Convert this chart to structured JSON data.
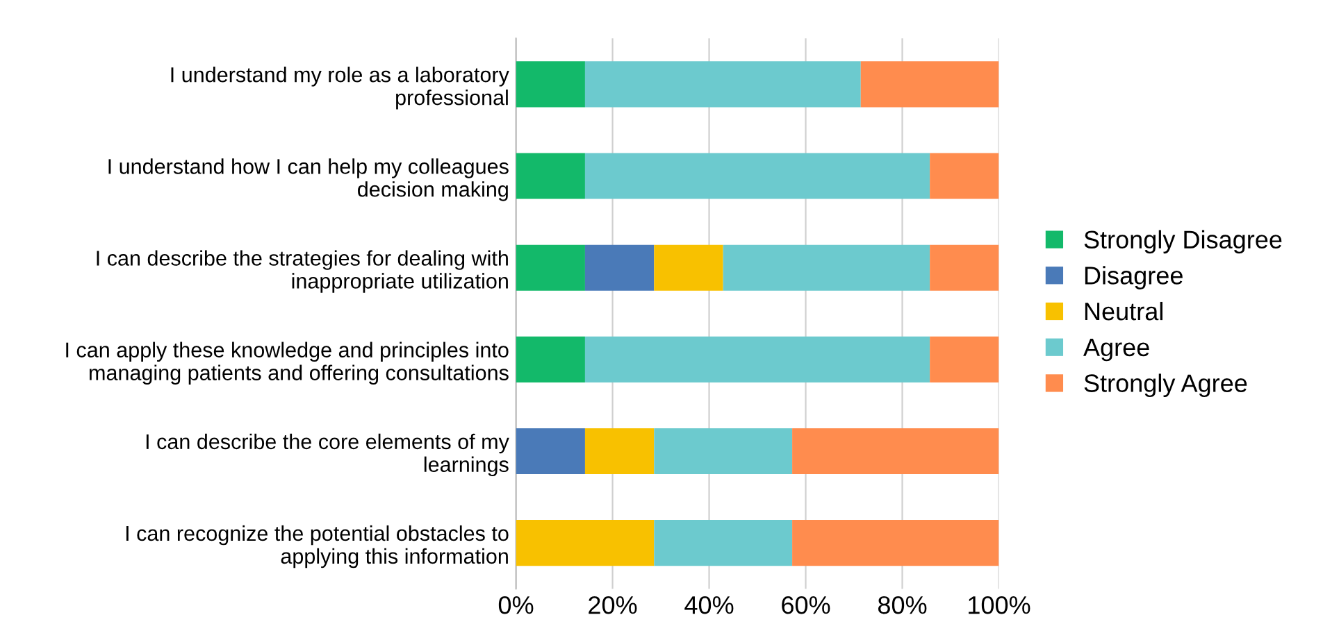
{
  "chart_data": {
    "type": "bar",
    "orientation": "horizontal",
    "stacked": true,
    "categories": [
      "I understand my role as a laboratory\nprofessional",
      "I understand how I can help my colleagues\ndecision making",
      "I can describe the strategies for dealing with\ninappropriate utilization",
      "I can apply these knowledge and principles into\nmanaging patients and offering consultations",
      "I can describe the core elements of my\nlearnings",
      "I can recognize the potential obstacles to\napplying this information"
    ],
    "series": [
      {
        "name": "Strongly Disagree",
        "color": "#13b96a",
        "values": [
          14.3,
          14.3,
          14.3,
          14.3,
          0,
          0
        ]
      },
      {
        "name": "Disagree",
        "color": "#4a7ab8",
        "values": [
          0,
          0,
          14.3,
          0,
          14.3,
          0
        ]
      },
      {
        "name": "Neutral",
        "color": "#f8c100",
        "values": [
          0,
          0,
          14.3,
          0,
          14.3,
          28.6
        ]
      },
      {
        "name": "Agree",
        "color": "#6ccace",
        "values": [
          57.1,
          71.4,
          42.8,
          71.4,
          28.6,
          28.6
        ]
      },
      {
        "name": "Strongly Agree",
        "color": "#ff8c4e",
        "values": [
          28.6,
          14.3,
          14.3,
          14.3,
          42.8,
          42.8
        ]
      }
    ],
    "xlim": [
      0,
      100
    ],
    "xticks": [
      {
        "value": 0,
        "label": "0%"
      },
      {
        "value": 20,
        "label": "20%"
      },
      {
        "value": 40,
        "label": "40%"
      },
      {
        "value": 60,
        "label": "60%"
      },
      {
        "value": 80,
        "label": "80%"
      },
      {
        "value": 100,
        "label": "100%"
      }
    ],
    "grid": "x",
    "legend": "right"
  }
}
